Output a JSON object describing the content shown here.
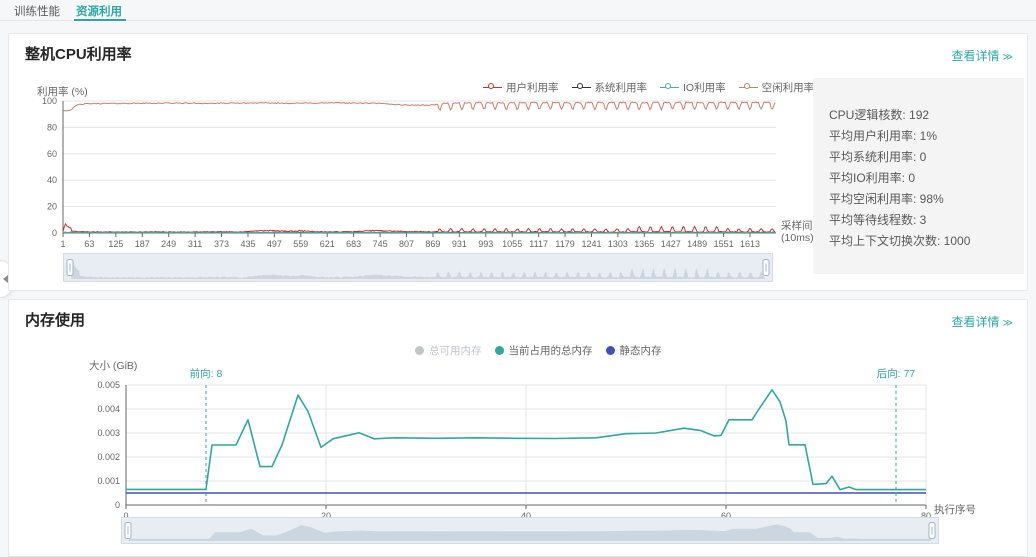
{
  "colors": {
    "accent": "#2fa8a2",
    "user": "#c23531",
    "system": "#333333",
    "io": "#4cab9f",
    "idle": "#c97f6b",
    "mem_used": "#2fa8a2",
    "mem_static": "#4150b5",
    "mem_available": "#c0c4cc",
    "grid": "#e6e6e6",
    "axis": "#999999",
    "axis_dark": "#666666",
    "annotation": "#2fa8a2",
    "slider_bg": "#e7edf3",
    "slider_border": "#d3dce5",
    "slider_fill": "#c6d1dc",
    "slider_handle": "#a3b3c4"
  },
  "tabs": [
    {
      "label": "训练性能",
      "active": false
    },
    {
      "label": "资源利用",
      "active": true
    }
  ],
  "cpu_panel": {
    "title": "整机CPU利用率",
    "detail_link": "查看详情",
    "detail_icon": "≫",
    "y_axis_name": "利用率 (%)",
    "x_axis_name_line1": "采样间隔",
    "x_axis_name_line2": "(10ms)",
    "legend": [
      {
        "key": "user",
        "label": "用户利用率",
        "color_key": "user"
      },
      {
        "key": "system",
        "label": "系统利用率",
        "color_key": "system"
      },
      {
        "key": "io",
        "label": "IO利用率",
        "color_key": "io"
      },
      {
        "key": "idle",
        "label": "空闲利用率",
        "color_key": "idle"
      }
    ],
    "stats": [
      {
        "label": "CPU逻辑核数: ",
        "value": "192"
      },
      {
        "label": "平均用户利用率: ",
        "value": "1%"
      },
      {
        "label": "平均系统利用率: ",
        "value": "0"
      },
      {
        "label": "平均IO利用率: ",
        "value": "0"
      },
      {
        "label": "平均空闲利用率: ",
        "value": "98%"
      },
      {
        "label": "平均等待线程数: ",
        "value": "3"
      },
      {
        "label": "平均上下文切换次数: ",
        "value": "1000"
      }
    ]
  },
  "mem_panel": {
    "title": "内存使用",
    "detail_link": "查看详情",
    "detail_icon": "≫",
    "y_axis_name": "大小 (GiB)",
    "x_axis_name": "执行序号",
    "legend": [
      {
        "key": "available",
        "label": "总可用内存",
        "color_key": "mem_available",
        "visible": false
      },
      {
        "key": "used",
        "label": "当前占用的总内存",
        "color_key": "mem_used",
        "visible": true
      },
      {
        "key": "static",
        "label": "静态内存",
        "color_key": "mem_static",
        "visible": true
      }
    ],
    "annotations": [
      {
        "label": "前向: 8",
        "x": 8
      },
      {
        "label": "后向: 77",
        "x": 77
      }
    ]
  },
  "chart_data": [
    {
      "id": "cpu",
      "type": "line",
      "title": "整机CPU利用率",
      "xlabel": "采样间隔(10ms)",
      "ylabel": "利用率 (%)",
      "x_range": [
        1,
        1674
      ],
      "ylim": [
        0,
        100
      ],
      "grid": true,
      "legend_position": "top",
      "x_ticks": [
        "1",
        "63",
        "125",
        "187",
        "249",
        "311",
        "373",
        "435",
        "497",
        "559",
        "621",
        "683",
        "745",
        "807",
        "869",
        "931",
        "993",
        "1055",
        "1117",
        "1179",
        "1241",
        "1303",
        "1365",
        "1427",
        "1489",
        "1551",
        "1613"
      ],
      "y_ticks": [
        0,
        20,
        40,
        60,
        80,
        100
      ],
      "series": [
        {
          "name": "用户利用率",
          "color_key": "user",
          "seed": 7,
          "noise": 0.3,
          "width": 1,
          "control_points": [
            [
              1,
              1.2
            ],
            [
              3,
              5.5
            ],
            [
              5,
              3.5
            ],
            [
              7,
              6.8
            ],
            [
              9,
              4.5
            ],
            [
              12,
              6.2
            ],
            [
              15,
              3.2
            ],
            [
              18,
              4.8
            ],
            [
              22,
              1.8
            ],
            [
              30,
              1.0
            ],
            [
              60,
              0.8
            ],
            [
              150,
              0.7
            ],
            [
              300,
              0.75
            ],
            [
              420,
              0.8
            ],
            [
              455,
              1.7
            ],
            [
              490,
              1.9
            ],
            [
              530,
              1.3
            ],
            [
              560,
              1.7
            ],
            [
              600,
              0.9
            ],
            [
              640,
              0.8
            ],
            [
              690,
              1.1
            ],
            [
              730,
              1.9
            ],
            [
              770,
              1.5
            ],
            [
              820,
              1.0
            ],
            [
              880,
              0.9
            ],
            [
              1674,
              0.85
            ]
          ],
          "osc": {
            "start": 880,
            "period": 26,
            "duty": 0.38,
            "amp": 2.4,
            "base": 0,
            "boost": [
              1350,
              1545,
              1.7
            ]
          }
        },
        {
          "name": "系统利用率",
          "color_key": "system",
          "seed": 13,
          "noise": 0.22,
          "width": 1,
          "control_points": [
            [
              1,
              0.5
            ],
            [
              1674,
              0.45
            ]
          ]
        },
        {
          "name": "IO利用率",
          "color_key": "io",
          "seed": 29,
          "noise": 0.15,
          "width": 1,
          "control_points": [
            [
              1,
              0.35
            ],
            [
              1674,
              0.3
            ]
          ]
        },
        {
          "name": "空闲利用率",
          "color_key": "idle",
          "seed": 42,
          "noise": 0.35,
          "width": 1,
          "control_points": [
            [
              1,
              93.2
            ],
            [
              8,
              92.5
            ],
            [
              20,
              93.5
            ],
            [
              35,
              97.2
            ],
            [
              60,
              98.0
            ],
            [
              150,
              98.2
            ],
            [
              250,
              98.4
            ],
            [
              350,
              98.2
            ],
            [
              450,
              98.5
            ],
            [
              550,
              98.3
            ],
            [
              650,
              98.6
            ],
            [
              740,
              98.2
            ],
            [
              800,
              97.0
            ],
            [
              860,
              96.8
            ],
            [
              880,
              97.5
            ],
            [
              950,
              98.0
            ],
            [
              1674,
              98.2
            ]
          ],
          "osc": {
            "start": 880,
            "period": 26,
            "duty": 0.38,
            "amp": -4.5,
            "base": 0.7
          }
        }
      ]
    },
    {
      "id": "mem",
      "type": "line",
      "title": "内存使用",
      "xlabel": "执行序号",
      "ylabel": "大小 (GiB)",
      "x_range": [
        0,
        80
      ],
      "ylim": [
        0,
        0.005
      ],
      "grid": true,
      "legend_position": "top",
      "x_ticks": [
        0,
        20,
        40,
        60,
        80
      ],
      "y_ticks": [
        0,
        0.001,
        0.002,
        0.003,
        0.004,
        0.005
      ],
      "markers": [
        {
          "label": "前向: 8",
          "x": 8
        },
        {
          "label": "后向: 77",
          "x": 77
        }
      ],
      "series": [
        {
          "name": "总可用内存",
          "color_key": "mem_available",
          "visible": false,
          "points": []
        },
        {
          "name": "当前占用的总内存",
          "color_key": "mem_used",
          "width": 1.6,
          "points": [
            [
              0,
              0.00065
            ],
            [
              8,
              0.00065
            ],
            [
              8.6,
              0.0025
            ],
            [
              11,
              0.0025
            ],
            [
              12.2,
              0.00355
            ],
            [
              13.4,
              0.0016
            ],
            [
              14.6,
              0.0016
            ],
            [
              15.6,
              0.0025
            ],
            [
              17.2,
              0.00458
            ],
            [
              18.2,
              0.0039
            ],
            [
              19.5,
              0.0024
            ],
            [
              20.7,
              0.00276
            ],
            [
              23.3,
              0.00301
            ],
            [
              24.8,
              0.00276
            ],
            [
              27,
              0.0028
            ],
            [
              31,
              0.00278
            ],
            [
              35,
              0.0028
            ],
            [
              39,
              0.00278
            ],
            [
              43,
              0.00277
            ],
            [
              47,
              0.0028
            ],
            [
              50,
              0.00297
            ],
            [
              53,
              0.003
            ],
            [
              55.8,
              0.0032
            ],
            [
              57.5,
              0.0031
            ],
            [
              58.8,
              0.00288
            ],
            [
              59.5,
              0.0029
            ],
            [
              60.3,
              0.00355
            ],
            [
              62.6,
              0.00355
            ],
            [
              63.3,
              0.004
            ],
            [
              64.6,
              0.0048
            ],
            [
              65.4,
              0.0043
            ],
            [
              66,
              0.0035
            ],
            [
              66.3,
              0.00251
            ],
            [
              67.9,
              0.00251
            ],
            [
              68.7,
              0.00086
            ],
            [
              70,
              0.00089
            ],
            [
              70.6,
              0.0012
            ],
            [
              71.4,
              0.00064
            ],
            [
              72.3,
              0.00075
            ],
            [
              73,
              0.00064
            ],
            [
              76,
              0.00064
            ],
            [
              80,
              0.00064
            ]
          ]
        },
        {
          "name": "静态内存",
          "color_key": "mem_static",
          "width": 1.6,
          "points": [
            [
              0,
              0.0005
            ],
            [
              80,
              0.0005
            ]
          ]
        }
      ]
    }
  ]
}
